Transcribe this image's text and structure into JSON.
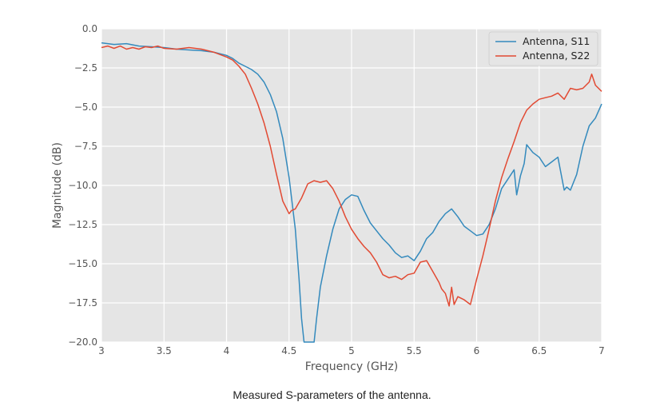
{
  "caption": "Measured S-parameters of the antenna.",
  "chart_data": {
    "type": "line",
    "title": "",
    "xlabel": "Frequency (GHz)",
    "ylabel": "Magnitude (dB)",
    "xlim": [
      3,
      7
    ],
    "ylim": [
      -20,
      0
    ],
    "x_ticks": [
      3,
      3.5,
      4,
      4.5,
      5,
      5.5,
      6,
      6.5,
      7
    ],
    "x_tick_labels": [
      "3",
      "3.5",
      "4",
      "4.5",
      "5",
      "5.5",
      "6",
      "6.5",
      "7"
    ],
    "y_ticks": [
      0,
      -2.5,
      -5,
      -7.5,
      -10,
      -12.5,
      -15,
      -17.5,
      -20
    ],
    "y_tick_labels": [
      "0.0",
      "−2.5",
      "−5.0",
      "−7.5",
      "−10.0",
      "−12.5",
      "−15.0",
      "−17.5",
      "−20.0"
    ],
    "grid": true,
    "legend_position": "top-right",
    "colors": {
      "plot_background": "#e5e5e5",
      "grid": "#ffffff"
    },
    "series": [
      {
        "name": "Antenna, S11",
        "color": "#348abd",
        "x": [
          3.0,
          3.1,
          3.2,
          3.3,
          3.4,
          3.5,
          3.6,
          3.7,
          3.8,
          3.9,
          4.0,
          4.05,
          4.1,
          4.15,
          4.2,
          4.25,
          4.3,
          4.35,
          4.4,
          4.45,
          4.5,
          4.55,
          4.58,
          4.6,
          4.62,
          4.7,
          4.72,
          4.75,
          4.8,
          4.85,
          4.9,
          4.95,
          5.0,
          5.05,
          5.1,
          5.15,
          5.2,
          5.25,
          5.3,
          5.35,
          5.4,
          5.45,
          5.5,
          5.55,
          5.6,
          5.65,
          5.7,
          5.75,
          5.8,
          5.85,
          5.9,
          5.95,
          6.0,
          6.05,
          6.1,
          6.15,
          6.2,
          6.25,
          6.3,
          6.32,
          6.35,
          6.38,
          6.4,
          6.45,
          6.5,
          6.55,
          6.6,
          6.65,
          6.7,
          6.72,
          6.75,
          6.8,
          6.85,
          6.9,
          6.95,
          7.0
        ],
        "y": [
          -0.9,
          -1.0,
          -0.95,
          -1.1,
          -1.15,
          -1.2,
          -1.3,
          -1.35,
          -1.4,
          -1.5,
          -1.7,
          -1.9,
          -2.2,
          -2.4,
          -2.6,
          -2.9,
          -3.4,
          -4.2,
          -5.3,
          -7.0,
          -9.5,
          -12.8,
          -16.0,
          -18.5,
          -20.0,
          -20.0,
          -18.5,
          -16.5,
          -14.5,
          -12.8,
          -11.5,
          -10.9,
          -10.6,
          -10.7,
          -11.6,
          -12.4,
          -12.9,
          -13.4,
          -13.8,
          -14.3,
          -14.6,
          -14.5,
          -14.8,
          -14.2,
          -13.4,
          -13.0,
          -12.3,
          -11.8,
          -11.5,
          -12.0,
          -12.6,
          -12.9,
          -13.2,
          -13.1,
          -12.5,
          -11.5,
          -10.2,
          -9.6,
          -9.0,
          -10.6,
          -9.4,
          -8.6,
          -7.4,
          -7.9,
          -8.2,
          -8.8,
          -8.5,
          -8.2,
          -10.3,
          -10.1,
          -10.3,
          -9.3,
          -7.5,
          -6.2,
          -5.7,
          -4.8
        ]
      },
      {
        "name": "Antenna, S22",
        "color": "#e24a33",
        "x": [
          3.0,
          3.05,
          3.1,
          3.15,
          3.2,
          3.25,
          3.3,
          3.35,
          3.4,
          3.45,
          3.5,
          3.6,
          3.7,
          3.8,
          3.9,
          4.0,
          4.05,
          4.1,
          4.15,
          4.2,
          4.25,
          4.3,
          4.35,
          4.4,
          4.45,
          4.5,
          4.52,
          4.55,
          4.6,
          4.65,
          4.7,
          4.75,
          4.8,
          4.85,
          4.9,
          4.95,
          5.0,
          5.05,
          5.1,
          5.15,
          5.2,
          5.25,
          5.3,
          5.35,
          5.4,
          5.45,
          5.5,
          5.55,
          5.6,
          5.65,
          5.7,
          5.72,
          5.75,
          5.78,
          5.8,
          5.82,
          5.85,
          5.9,
          5.95,
          6.0,
          6.05,
          6.1,
          6.15,
          6.2,
          6.25,
          6.3,
          6.35,
          6.4,
          6.45,
          6.5,
          6.55,
          6.6,
          6.65,
          6.7,
          6.75,
          6.8,
          6.85,
          6.9,
          6.92,
          6.95,
          7.0
        ],
        "y": [
          -1.2,
          -1.1,
          -1.25,
          -1.1,
          -1.3,
          -1.2,
          -1.3,
          -1.15,
          -1.2,
          -1.1,
          -1.25,
          -1.3,
          -1.2,
          -1.3,
          -1.5,
          -1.8,
          -2.0,
          -2.4,
          -2.9,
          -3.8,
          -4.8,
          -6.0,
          -7.5,
          -9.3,
          -11.0,
          -11.8,
          -11.6,
          -11.5,
          -10.8,
          -9.9,
          -9.7,
          -9.8,
          -9.7,
          -10.2,
          -11.0,
          -12.0,
          -12.8,
          -13.4,
          -13.9,
          -14.3,
          -14.9,
          -15.7,
          -15.9,
          -15.8,
          -16.0,
          -15.7,
          -15.6,
          -14.9,
          -14.8,
          -15.5,
          -16.2,
          -16.6,
          -16.9,
          -17.7,
          -16.5,
          -17.6,
          -17.1,
          -17.3,
          -17.6,
          -16.0,
          -14.5,
          -12.8,
          -11.0,
          -9.5,
          -8.3,
          -7.2,
          -6.0,
          -5.2,
          -4.8,
          -4.5,
          -4.4,
          -4.3,
          -4.1,
          -4.5,
          -3.8,
          -3.9,
          -3.8,
          -3.4,
          -2.9,
          -3.6,
          -4.0
        ]
      }
    ]
  }
}
